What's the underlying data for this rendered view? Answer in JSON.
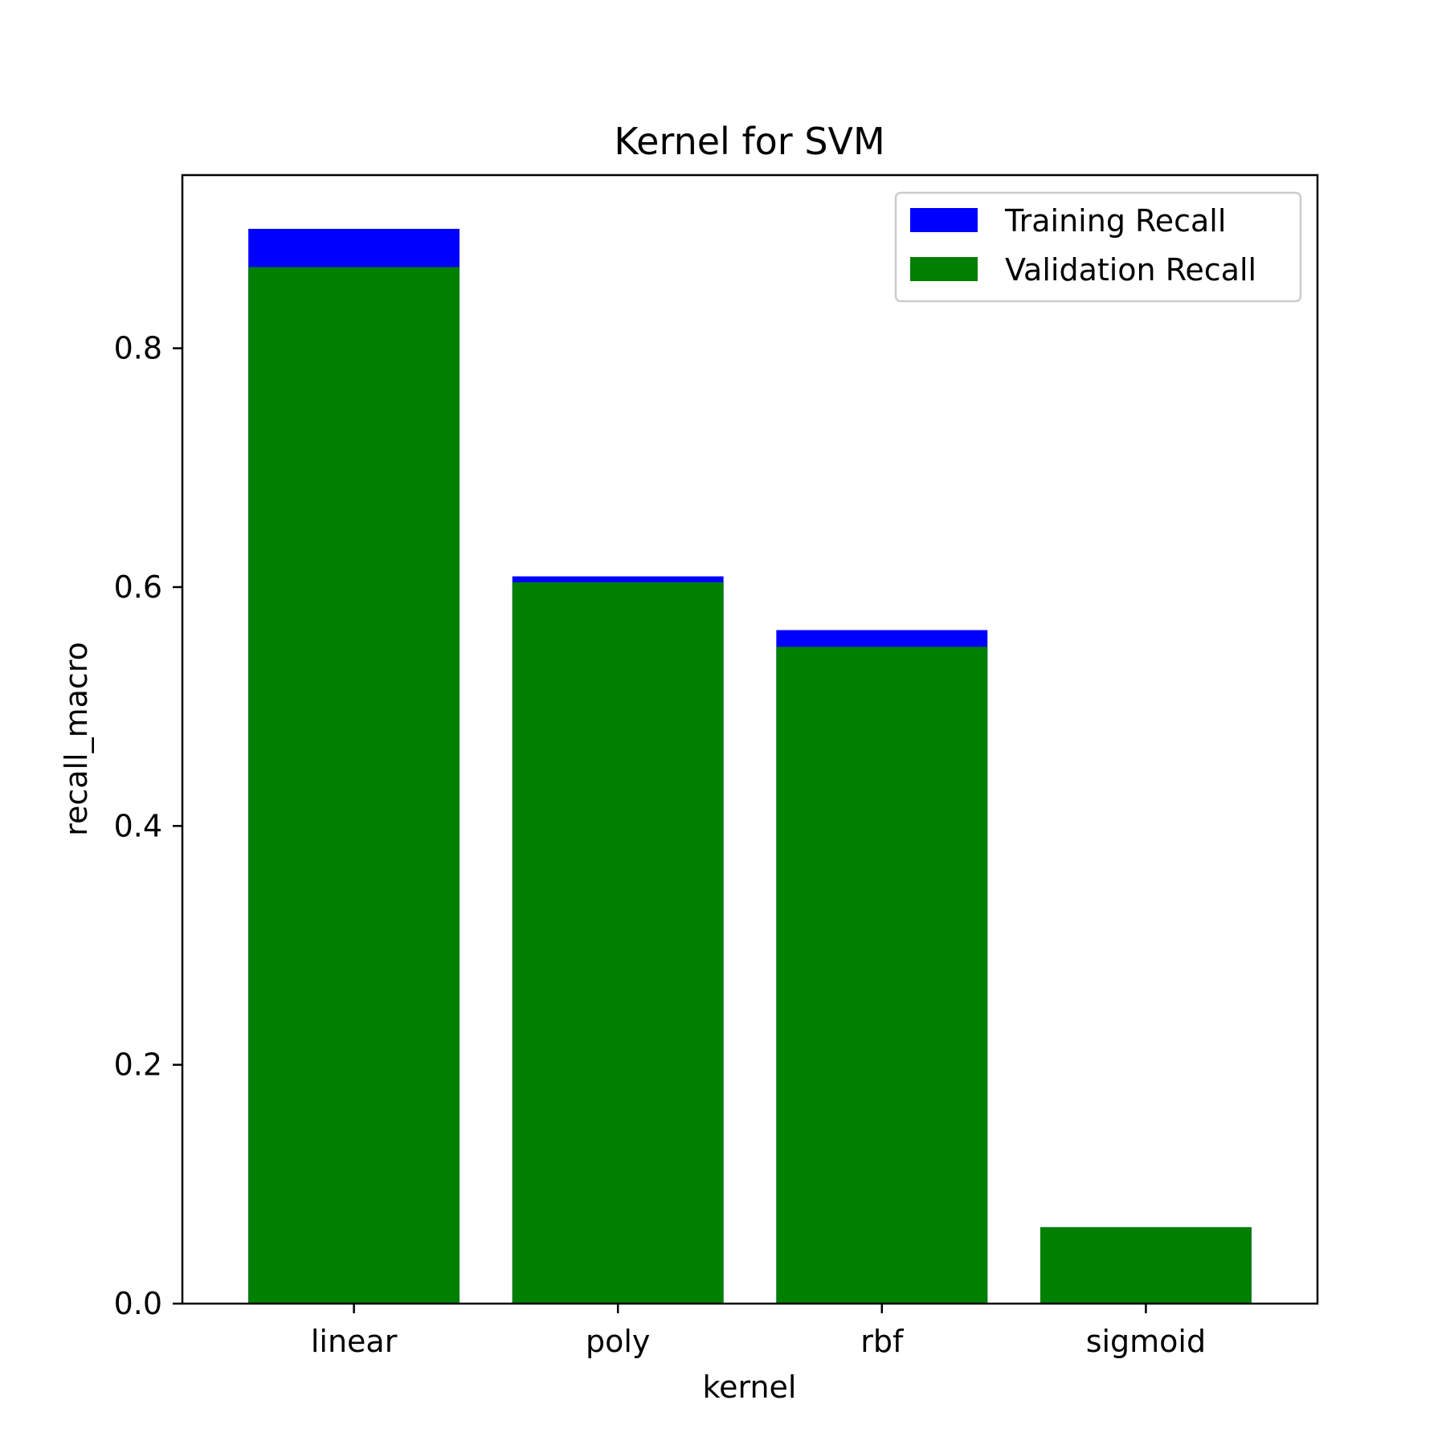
{
  "chart_data": {
    "type": "bar",
    "title": "Kernel for SVM",
    "xlabel": "kernel",
    "ylabel": "recall_macro",
    "categories": [
      "linear",
      "poly",
      "rbf",
      "sigmoid"
    ],
    "series": [
      {
        "name": "Training Recall",
        "color": "#0000ff",
        "values": [
          0.9,
          0.609,
          0.564,
          0.064
        ]
      },
      {
        "name": "Validation Recall",
        "color": "#008000",
        "values": [
          0.868,
          0.604,
          0.55,
          0.064
        ]
      }
    ],
    "ylim": [
      0,
      0.945
    ],
    "yticks": [
      0.0,
      0.2,
      0.4,
      0.6,
      0.8
    ],
    "ytick_labels": [
      "0.0",
      "0.2",
      "0.4",
      "0.6",
      "0.8"
    ],
    "grid": false,
    "legend_position": "top-right"
  }
}
